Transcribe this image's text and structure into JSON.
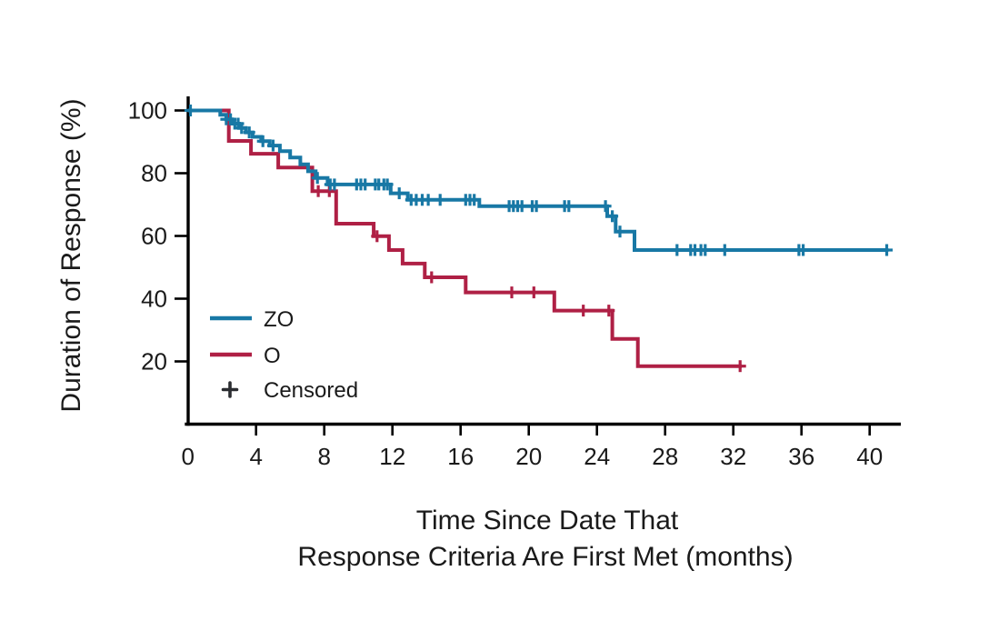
{
  "figure": {
    "ylabel": "Duration of Response (%)",
    "xlabel_line1": "Time Since Date That",
    "xlabel_line2": "Response Criteria Are First Met (months)"
  },
  "legend": {
    "zo_label": "ZO",
    "o_label": "O",
    "censored_label": "Censored",
    "censored_marker": "plus-icon"
  },
  "colors": {
    "zo": "#1878a5",
    "o": "#af2045",
    "censor_mark": "#2b2d31",
    "axis": "#000000",
    "text": "#1a1a1a",
    "background": "#ffffff"
  },
  "chart_data": {
    "type": "line",
    "subtype": "kaplan-meier-step",
    "title": "",
    "xlabel": "Time Since Date That Response Criteria Are First Met (months)",
    "ylabel": "Duration of Response (%)",
    "xlim": [
      0,
      41.8
    ],
    "ylim": [
      0,
      105
    ],
    "x_ticks": [
      0,
      4,
      8,
      12,
      16,
      20,
      24,
      28,
      32,
      36,
      40
    ],
    "y_ticks": [
      20,
      40,
      60,
      80,
      100
    ],
    "grid": false,
    "legend_position": "inside-lower-left",
    "series": [
      {
        "name": "ZO",
        "color": "#1878a5",
        "end_time": 41.1,
        "step_points": [
          [
            0,
            100
          ],
          [
            1.9,
            98.6
          ],
          [
            2.25,
            97.2
          ],
          [
            2.6,
            95.8
          ],
          [
            3.0,
            94.4
          ],
          [
            3.4,
            93.0
          ],
          [
            3.8,
            91.6
          ],
          [
            4.3,
            90.2
          ],
          [
            4.8,
            88.8
          ],
          [
            5.4,
            87.0
          ],
          [
            6.0,
            85.0
          ],
          [
            6.6,
            82.8
          ],
          [
            7.05,
            80.6
          ],
          [
            7.5,
            78.5
          ],
          [
            8.2,
            76.4
          ],
          [
            11.9,
            73.6
          ],
          [
            12.9,
            71.5
          ],
          [
            17.1,
            69.5
          ],
          [
            24.6,
            66.3
          ],
          [
            25.1,
            61.4
          ],
          [
            26.2,
            55.5
          ]
        ],
        "censors": [
          [
            0.15,
            100
          ],
          [
            2.25,
            97.2
          ],
          [
            2.5,
            97.2
          ],
          [
            2.75,
            95.8
          ],
          [
            2.95,
            95.8
          ],
          [
            3.15,
            94.4
          ],
          [
            3.6,
            93.0
          ],
          [
            4.4,
            90.2
          ],
          [
            5.0,
            88.8
          ],
          [
            7.6,
            78.5
          ],
          [
            8.35,
            76.4
          ],
          [
            8.6,
            76.4
          ],
          [
            9.9,
            76.4
          ],
          [
            10.15,
            76.4
          ],
          [
            10.4,
            76.4
          ],
          [
            11.0,
            76.4
          ],
          [
            11.2,
            76.4
          ],
          [
            11.5,
            76.4
          ],
          [
            11.7,
            76.4
          ],
          [
            12.4,
            73.6
          ],
          [
            13.1,
            71.5
          ],
          [
            13.4,
            71.5
          ],
          [
            13.75,
            71.5
          ],
          [
            14.1,
            71.5
          ],
          [
            14.8,
            71.5
          ],
          [
            16.3,
            71.5
          ],
          [
            16.55,
            71.5
          ],
          [
            16.8,
            71.5
          ],
          [
            18.85,
            69.5
          ],
          [
            19.1,
            69.5
          ],
          [
            19.35,
            69.5
          ],
          [
            19.6,
            69.5
          ],
          [
            20.2,
            69.5
          ],
          [
            20.45,
            69.5
          ],
          [
            22.1,
            69.5
          ],
          [
            22.35,
            69.5
          ],
          [
            24.5,
            69.5
          ],
          [
            24.9,
            66.3
          ],
          [
            25.35,
            61.4
          ],
          [
            28.7,
            55.5
          ],
          [
            29.5,
            55.5
          ],
          [
            29.75,
            55.5
          ],
          [
            30.1,
            55.5
          ],
          [
            30.35,
            55.5
          ],
          [
            31.5,
            55.5
          ],
          [
            35.85,
            55.5
          ],
          [
            36.1,
            55.5
          ],
          [
            41.0,
            55.5
          ]
        ]
      },
      {
        "name": "O",
        "color": "#af2045",
        "end_time": 32.5,
        "step_points": [
          [
            0,
            100
          ],
          [
            2.4,
            90.3
          ],
          [
            3.7,
            86.2
          ],
          [
            5.3,
            81.8
          ],
          [
            7.3,
            74.3
          ],
          [
            8.7,
            63.9
          ],
          [
            10.9,
            59.9
          ],
          [
            11.8,
            55.5
          ],
          [
            12.6,
            51.2
          ],
          [
            13.9,
            46.8
          ],
          [
            16.3,
            42.0
          ],
          [
            21.5,
            36.2
          ],
          [
            24.9,
            27.2
          ],
          [
            26.4,
            18.5
          ]
        ],
        "censors": [
          [
            7.65,
            74.3
          ],
          [
            8.3,
            74.3
          ],
          [
            11.1,
            59.9
          ],
          [
            14.3,
            46.8
          ],
          [
            19.0,
            42.0
          ],
          [
            20.3,
            42.0
          ],
          [
            23.2,
            36.2
          ],
          [
            24.7,
            36.2
          ],
          [
            32.4,
            18.5
          ]
        ]
      }
    ]
  }
}
